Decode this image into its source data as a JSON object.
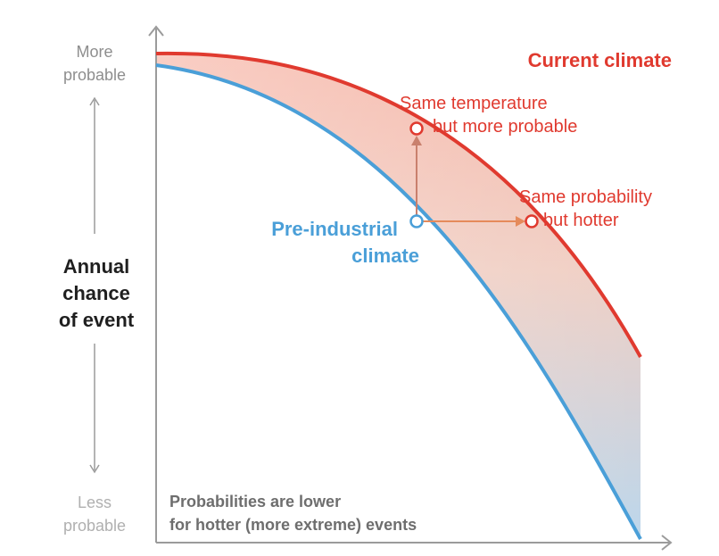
{
  "title": "Current climate",
  "y_axis": {
    "label_lines": [
      "Annual",
      "chance",
      "of event"
    ],
    "top_lines": [
      "More",
      "probable"
    ],
    "bottom_lines": [
      "Less",
      "probable"
    ]
  },
  "curves": {
    "current": {
      "label": "Current climate",
      "color": "#e03a2f"
    },
    "preindustrial": {
      "label_lines": [
        "Pre-industrial",
        "climate"
      ],
      "color": "#4a9fd8"
    }
  },
  "annotations": {
    "same_temperature": [
      "Same temperature",
      "but more probable"
    ],
    "same_probability": [
      "Same probability",
      "but hotter"
    ]
  },
  "footnote_lines": [
    "Probabilities are lower",
    "for hotter (more extreme) events"
  ],
  "colors": {
    "axis": "#9b9b9b",
    "arrow_up": "#c9806d",
    "arrow_right": "#e58a5b",
    "axis_label": "#1f1f1f",
    "muted_text": "#8e8e8e",
    "footnote": "#6e6e6e"
  }
}
